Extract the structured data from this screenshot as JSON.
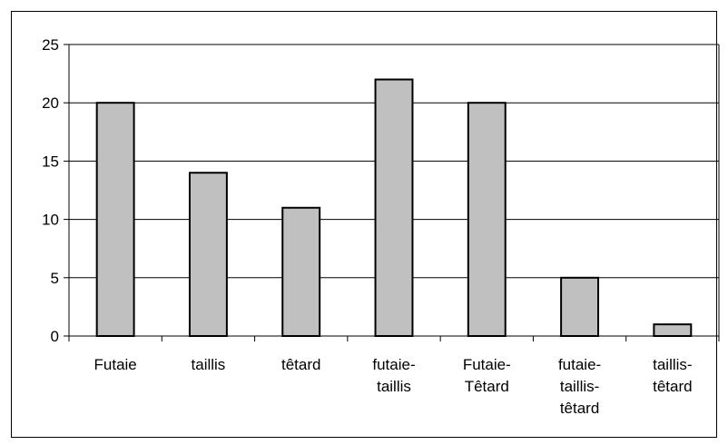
{
  "chart_data": {
    "type": "bar",
    "title": "",
    "xlabel": "",
    "ylabel": "",
    "categories": [
      [
        "Futaie"
      ],
      [
        "taillis"
      ],
      [
        "têtard"
      ],
      [
        "futaie-",
        "taillis"
      ],
      [
        "Futaie-",
        "Têtard"
      ],
      [
        "futaie-",
        "taillis-",
        "têtard"
      ],
      [
        "taillis-",
        "têtard"
      ]
    ],
    "values": [
      20,
      14,
      11,
      22,
      20,
      5,
      1
    ],
    "ylim": [
      0,
      25
    ],
    "yticks": [
      0,
      5,
      10,
      15,
      20,
      25
    ],
    "grid": true,
    "legend": "none",
    "colors": {
      "bar_fill": "#c0c0c0",
      "bar_stroke": "#000000",
      "grid": "#000000"
    }
  }
}
